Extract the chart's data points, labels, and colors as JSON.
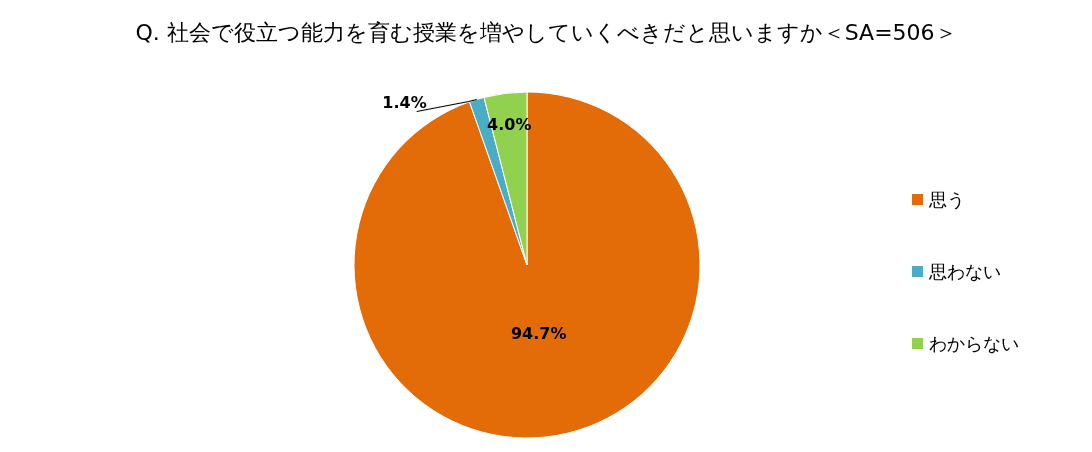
{
  "chart_data": {
    "type": "pie",
    "title": "Q. 社会で役立つ能力を育む授業を増やしていくべきだと思いますか＜SA=506＞",
    "categories": [
      "思う",
      "思わない",
      "わからない"
    ],
    "values": [
      94.7,
      1.4,
      4.0
    ],
    "colors": [
      "#e36c09",
      "#4bacc6",
      "#92d050"
    ],
    "value_labels": [
      "94.7%",
      "1.4%",
      "4.0%"
    ],
    "legend": "right"
  }
}
